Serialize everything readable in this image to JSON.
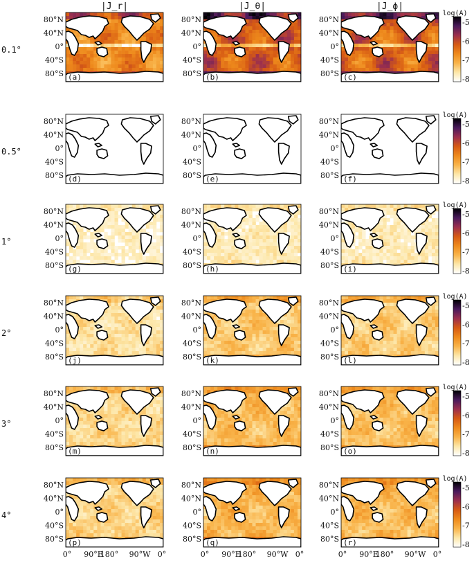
{
  "chart_data": {
    "type": "heatmap",
    "columns": [
      {
        "id": "jr",
        "label": "|J_r|"
      },
      {
        "id": "jtheta",
        "label": "|J_θ|"
      },
      {
        "id": "jphi",
        "label": "|J_ϕ|"
      }
    ],
    "rows": [
      {
        "label": "0.1°",
        "panels": [
          "(a)",
          "(b)",
          "(c)"
        ],
        "level": [
          0.55,
          0.72,
          0.7
        ]
      },
      {
        "label": "0.5°",
        "panels": [
          "(d)",
          "(e)",
          "(f)"
        ],
        "level": [
          0.0,
          0.0,
          0.0
        ]
      },
      {
        "label": "1°",
        "panels": [
          "(g)",
          "(h)",
          "(i)"
        ],
        "level": [
          0.12,
          0.15,
          0.15
        ]
      },
      {
        "label": "2°",
        "panels": [
          "(j)",
          "(k)",
          "(l)"
        ],
        "level": [
          0.2,
          0.3,
          0.28
        ]
      },
      {
        "label": "3°",
        "panels": [
          "(m)",
          "(n)",
          "(o)"
        ],
        "level": [
          0.24,
          0.34,
          0.32
        ]
      },
      {
        "label": "4°",
        "panels": [
          "(p)",
          "(q)",
          "(r)"
        ],
        "level": [
          0.26,
          0.36,
          0.34
        ]
      }
    ],
    "y_ticks": [
      "80°N",
      "40°N",
      "0°",
      "40°S",
      "80°S"
    ],
    "x_ticks": [
      "0°",
      "90°E",
      "180°",
      "90°W",
      "0°"
    ],
    "colorbar": {
      "title": "log(A)",
      "range": [
        -8,
        -5
      ],
      "ticks": [
        "-5",
        "-6",
        "-7",
        "-8"
      ],
      "colormap": [
        "#ffffff",
        "#fde7a9",
        "#f9b44a",
        "#ee8a1c",
        "#d65a14",
        "#9b2f4e",
        "#4a1a5c",
        "#000004"
      ]
    },
    "grid": false
  }
}
